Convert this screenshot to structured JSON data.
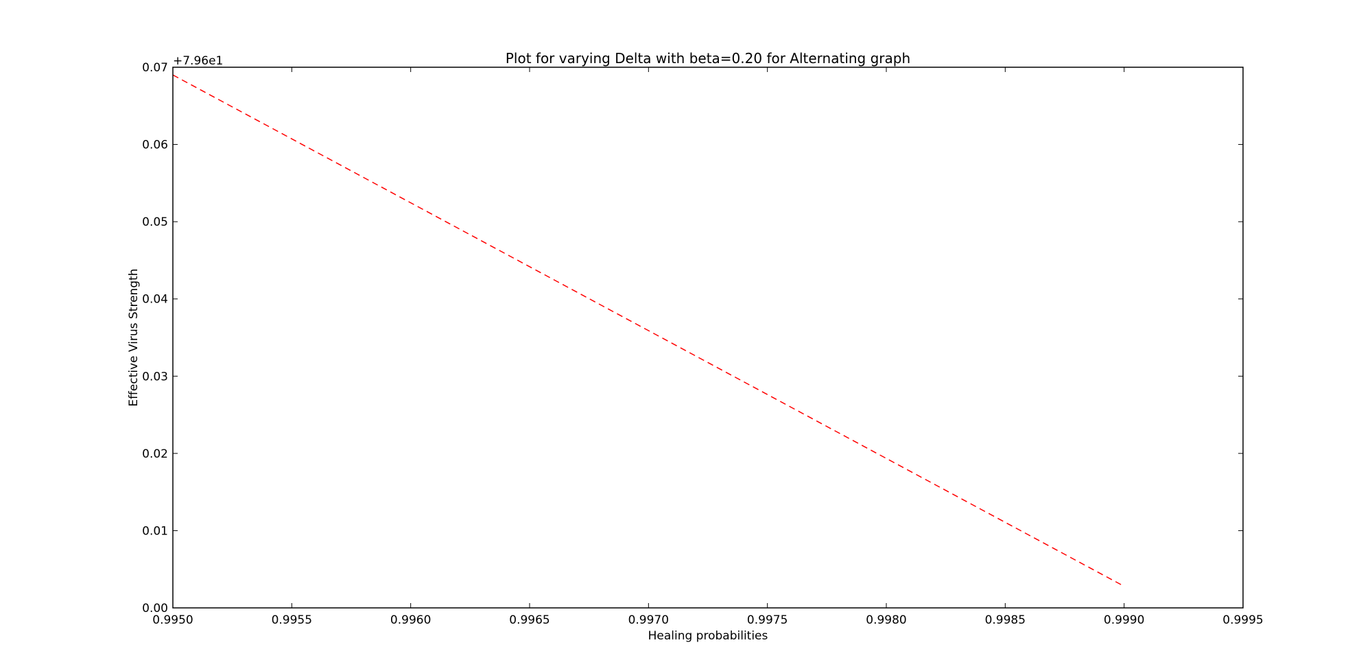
{
  "chart_data": {
    "type": "line",
    "title": "Plot for varying Delta with beta=0.20 for Alternating graph",
    "xlabel": "Healing probabilities",
    "ylabel": "Effective Virus Strength",
    "y_offset_label": "+7.96e1",
    "xlim": [
      0.995,
      0.9995
    ],
    "ylim": [
      0.0,
      0.07
    ],
    "x_ticks": [
      0.995,
      0.9955,
      0.996,
      0.9965,
      0.997,
      0.9975,
      0.998,
      0.9985,
      0.999,
      0.9995
    ],
    "x_tick_labels": [
      "0.9950",
      "0.9955",
      "0.9960",
      "0.9965",
      "0.9970",
      "0.9975",
      "0.9980",
      "0.9985",
      "0.9990",
      "0.9995"
    ],
    "y_ticks": [
      0.0,
      0.01,
      0.02,
      0.03,
      0.04,
      0.05,
      0.06,
      0.07
    ],
    "y_tick_labels": [
      "0.00",
      "0.01",
      "0.02",
      "0.03",
      "0.04",
      "0.05",
      "0.06",
      "0.07"
    ],
    "grid": false,
    "series": [
      {
        "line_style": "dashed",
        "color": "#ff0000",
        "x": [
          0.995,
          0.999
        ],
        "y": [
          0.069,
          0.0028
        ]
      }
    ]
  }
}
